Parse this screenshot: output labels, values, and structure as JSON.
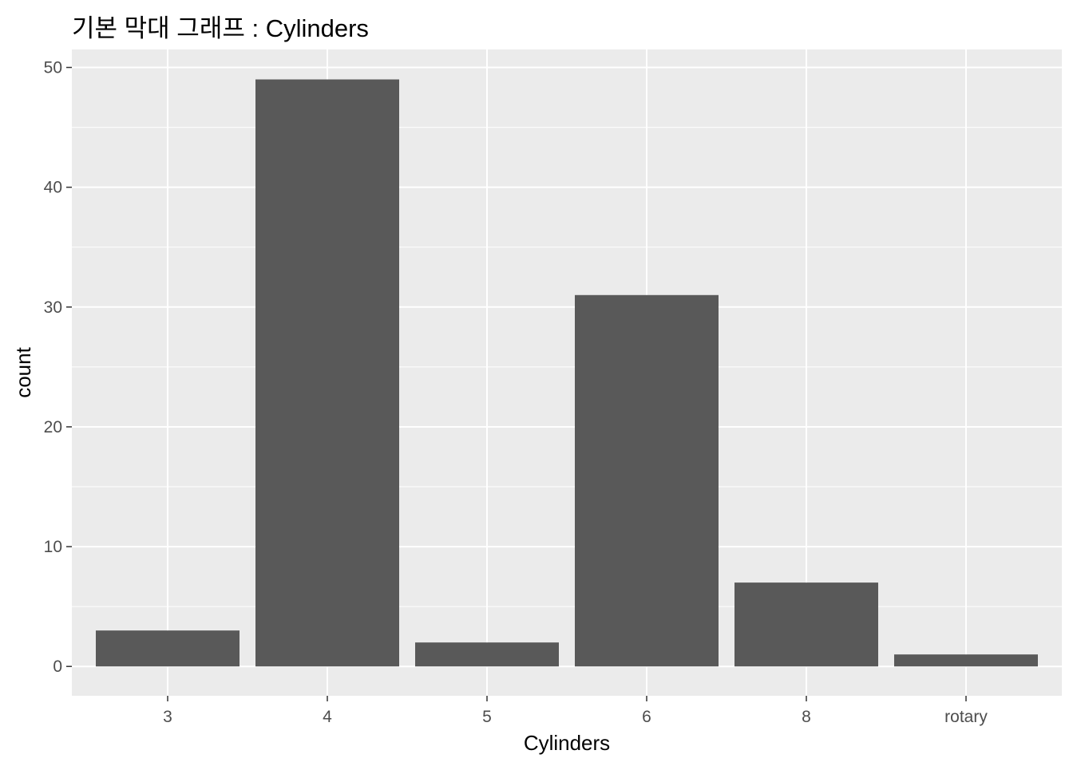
{
  "chart_data": {
    "type": "bar",
    "title": "기본 막대 그래프 : Cylinders",
    "xlabel": "Cylinders",
    "ylabel": "count",
    "categories": [
      "3",
      "4",
      "5",
      "6",
      "8",
      "rotary"
    ],
    "values": [
      3,
      49,
      2,
      31,
      7,
      1
    ],
    "ylim": [
      0,
      50
    ],
    "yticks": [
      0,
      10,
      20,
      30,
      40,
      50
    ],
    "grid": true,
    "legend": "none",
    "colors": {
      "panel_background": "#ebebeb",
      "grid_line": "#ffffff",
      "bar_fill": "#595959",
      "tick_label": "#4d4d4d"
    }
  }
}
